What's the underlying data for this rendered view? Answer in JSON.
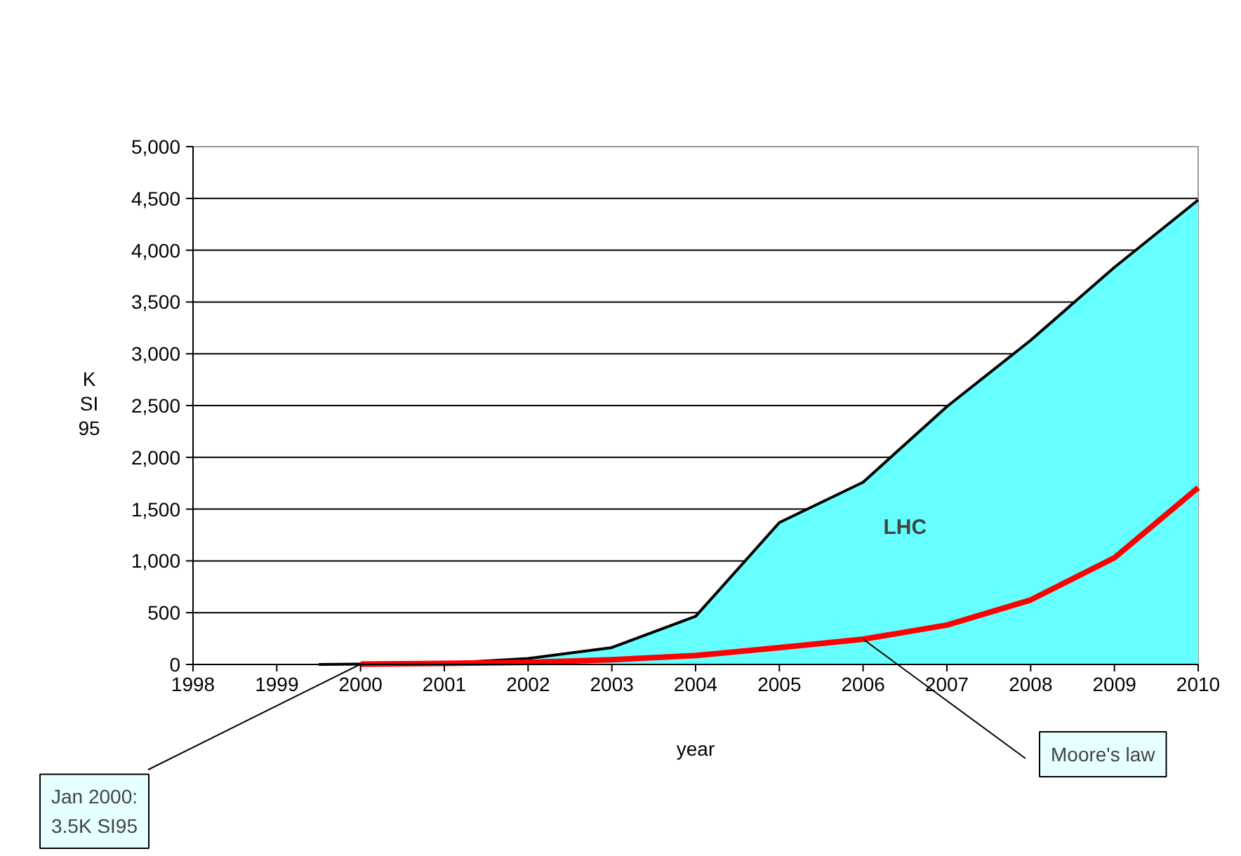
{
  "chart_data": {
    "type": "area",
    "xlabel": "year",
    "ylabel": "K\nSI\n95",
    "xlim": [
      1998,
      2010
    ],
    "xticks": [
      1998,
      1999,
      2000,
      2001,
      2002,
      2003,
      2004,
      2005,
      2006,
      2007,
      2008,
      2009,
      2010
    ],
    "ylim": [
      0,
      5000
    ],
    "yticks": [
      0,
      500,
      {
        "value": 1000,
        "label": "1,000"
      },
      {
        "value": 1500,
        "label": "1,500"
      },
      {
        "value": 2000,
        "label": "2,000"
      },
      {
        "value": 2500,
        "label": "2,500"
      },
      {
        "value": 3000,
        "label": "3,000"
      },
      {
        "value": 3500,
        "label": "3,500"
      },
      {
        "value": 4000,
        "label": "4,000"
      },
      {
        "value": 4500,
        "label": "4,500"
      },
      {
        "value": 5000,
        "label": "5,000"
      }
    ],
    "grid": "y",
    "legend": false,
    "series": [
      {
        "name": "LHC",
        "type": "area",
        "color": "#66ffff",
        "x": [
          1999.5,
          2000,
          2001,
          2002,
          2003,
          2004,
          2005,
          2006,
          2007,
          2008,
          2009,
          2010
        ],
        "values": [
          0,
          3.5,
          10,
          58,
          163,
          465,
          1370,
          1760,
          2490,
          3130,
          3835,
          4485
        ]
      },
      {
        "name": "Moore's law",
        "type": "line",
        "color": "#ff0000",
        "x": [
          2000,
          2001,
          2002,
          2003,
          2004,
          2005,
          2006,
          2007,
          2008,
          2009,
          2010
        ],
        "values": [
          3.5,
          10,
          20,
          45,
          86,
          163,
          244,
          380,
          623,
          1030,
          1707
        ]
      }
    ],
    "annotations": [
      {
        "text": "Jan 2000:\n3.5K SI95",
        "x": 2000,
        "y": 3.5
      }
    ]
  }
}
